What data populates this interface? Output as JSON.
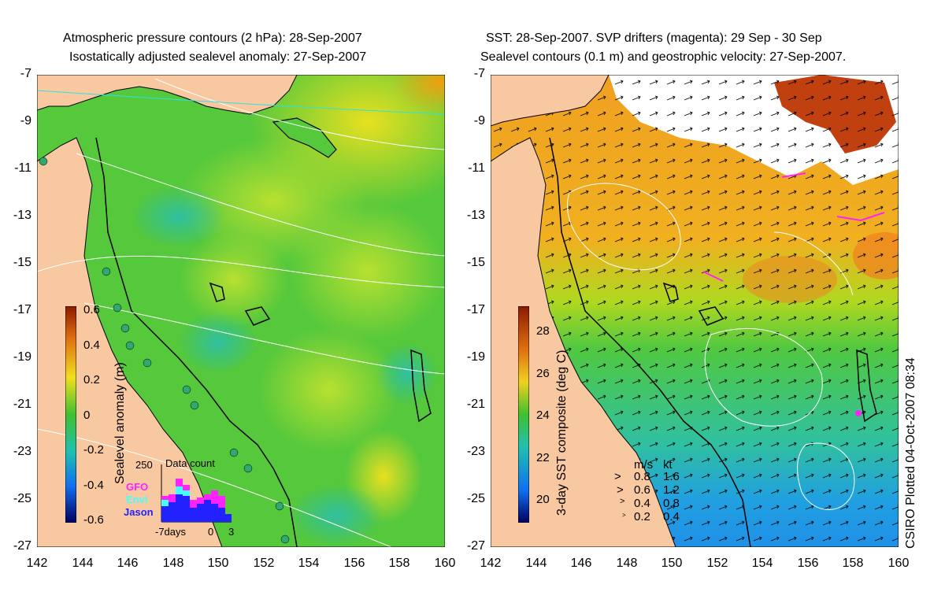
{
  "left_panel": {
    "title_line1": "Atmospheric pressure contours (2 hPa): 28-Sep-2007",
    "title_line2": "Isostatically adjusted sealevel anomaly: 27-Sep-2007",
    "colorbar_label": "Sealevel anomaly (m)",
    "colorbar_ticks": [
      "0.6",
      "0.4",
      "0.2",
      "0",
      "-0.2",
      "-0.4",
      "-0.6"
    ],
    "histogram": {
      "title": "Data count",
      "ymax_label": "250",
      "legend": [
        "GFO",
        "Envi",
        "Jason"
      ],
      "legend_colors": [
        "#ff22ff",
        "#44ffff",
        "#2222ff"
      ],
      "x_left": "-7days",
      "x_mid": "0",
      "x_right": "3"
    }
  },
  "right_panel": {
    "title_line1": "SST: 28-Sep-2007. SVP drifters (magenta): 29 Sep - 30 Sep",
    "title_line2": "Sealevel contours (0.1 m) and geostrophic velocity: 27-Sep-2007.",
    "colorbar_label": "3-day SST composite (deg C)",
    "colorbar_ticks": [
      "28",
      "26",
      "24",
      "22",
      "20"
    ],
    "velocity_legend": {
      "header_ms": "m/s",
      "header_kt": "kt",
      "rows": [
        {
          "ms": "0.8",
          "kt": "1.6"
        },
        {
          "ms": "0.6",
          "kt": "1.2"
        },
        {
          "ms": "0.4",
          "kt": "0.8"
        },
        {
          "ms": "0.2",
          "kt": "0.4"
        }
      ]
    },
    "credit": "CSIRO Plotted 04-Oct-2007 08:34"
  },
  "axes": {
    "y_ticks": [
      "-7",
      "-9",
      "-11",
      "-13",
      "-15",
      "-17",
      "-19",
      "-21",
      "-23",
      "-25",
      "-27"
    ],
    "x_ticks": [
      "142",
      "144",
      "146",
      "148",
      "150",
      "152",
      "154",
      "156",
      "158",
      "160"
    ]
  },
  "colors": {
    "land": "#f8c8a0",
    "ocean_green": "#55c83c",
    "sst_warm": "#f0a020",
    "drifter": "#ff22ff"
  }
}
